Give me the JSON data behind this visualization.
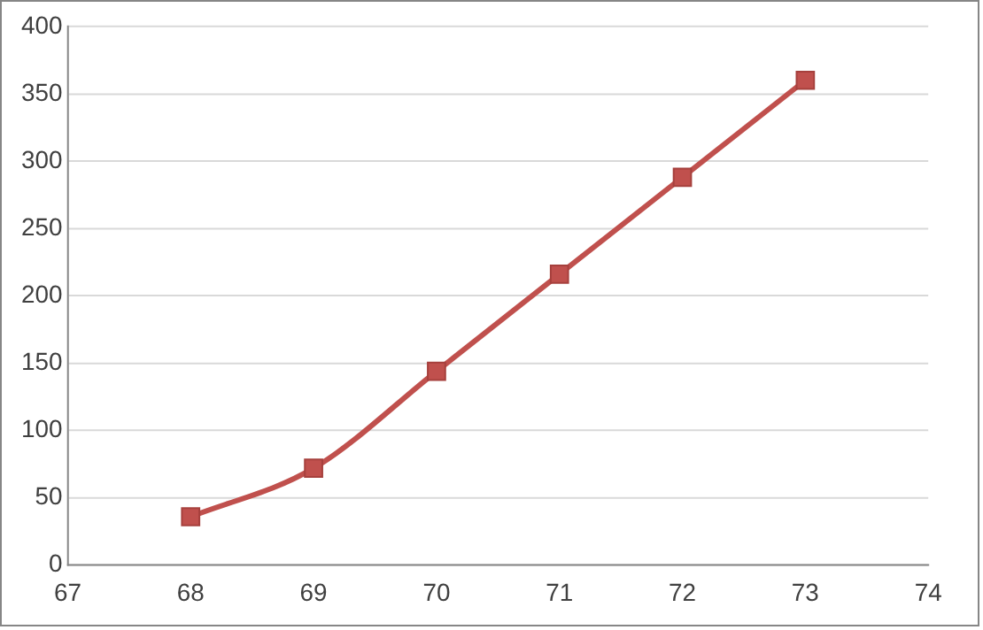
{
  "chart_data": {
    "type": "line",
    "x": [
      68,
      69,
      70,
      71,
      72,
      73
    ],
    "series": [
      {
        "color": "#c0504d",
        "values": [
          36,
          72,
          144,
          216,
          288,
          360
        ]
      }
    ],
    "xlim": [
      67,
      74
    ],
    "xticks": [
      67,
      68,
      69,
      70,
      71,
      72,
      73,
      74
    ],
    "ylim": [
      0,
      400
    ],
    "yticks": [
      0,
      50,
      100,
      150,
      200,
      250,
      300,
      350,
      400
    ],
    "grid": "y",
    "legend": false,
    "marker": "square",
    "line_style": "solid"
  }
}
